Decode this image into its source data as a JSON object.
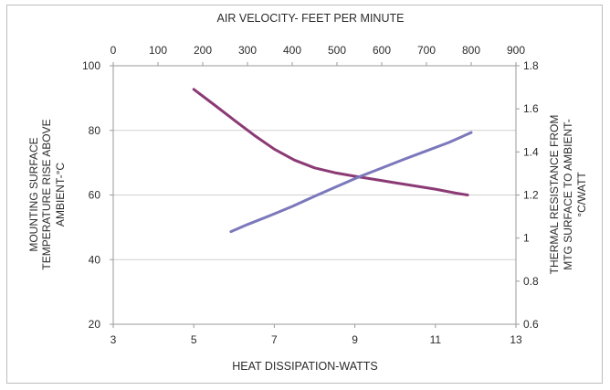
{
  "chart_data": {
    "type": "line",
    "top_axis": {
      "title": "AIR VELOCITY- FEET PER MINUTE",
      "range": [
        0,
        900
      ],
      "ticks": [
        0,
        100,
        200,
        300,
        400,
        500,
        600,
        700,
        800,
        900
      ]
    },
    "bottom_axis": {
      "title": "HEAT DISSIPATION-WATTS",
      "range": [
        3,
        13
      ],
      "ticks": [
        3,
        5,
        7,
        9,
        11,
        13
      ]
    },
    "left_axis": {
      "title_lines": [
        "MOUNTING SURFACE",
        "TEMPERATURE RISE ABOVE",
        "AMBIENT-°C"
      ],
      "range": [
        20,
        100
      ],
      "ticks": [
        20,
        40,
        60,
        80,
        100
      ]
    },
    "right_axis": {
      "title_lines": [
        "THERMAL RESISTANCE FROM",
        "MTG SURFACE TO AMBIENT-",
        "°C/WATT"
      ],
      "range": [
        0.6,
        1.8
      ],
      "ticks": [
        "0.6",
        "0.8",
        "1",
        "1.2",
        "1.4",
        "1.6",
        "1.8"
      ]
    },
    "grid": "horizontal",
    "series": [
      {
        "axes": "bottom-left",
        "color": "#8b3a74",
        "x": [
          5.0,
          5.5,
          6.0,
          6.5,
          7.0,
          7.5,
          8.0,
          8.5,
          9.0,
          9.5,
          10.0,
          10.5,
          11.0,
          11.5,
          11.8
        ],
        "y": [
          92.7,
          88.0,
          83.2,
          78.5,
          74.2,
          70.8,
          68.4,
          66.9,
          65.8,
          64.8,
          63.8,
          62.8,
          61.8,
          60.6,
          60.0
        ]
      },
      {
        "axes": "top-right",
        "color": "#7b78bc",
        "x": [
          263,
          300,
          350,
          400,
          450,
          500,
          550,
          600,
          650,
          700,
          750,
          800
        ],
        "y": [
          1.03,
          1.063,
          1.104,
          1.147,
          1.194,
          1.24,
          1.285,
          1.325,
          1.366,
          1.405,
          1.444,
          1.49
        ]
      }
    ]
  }
}
